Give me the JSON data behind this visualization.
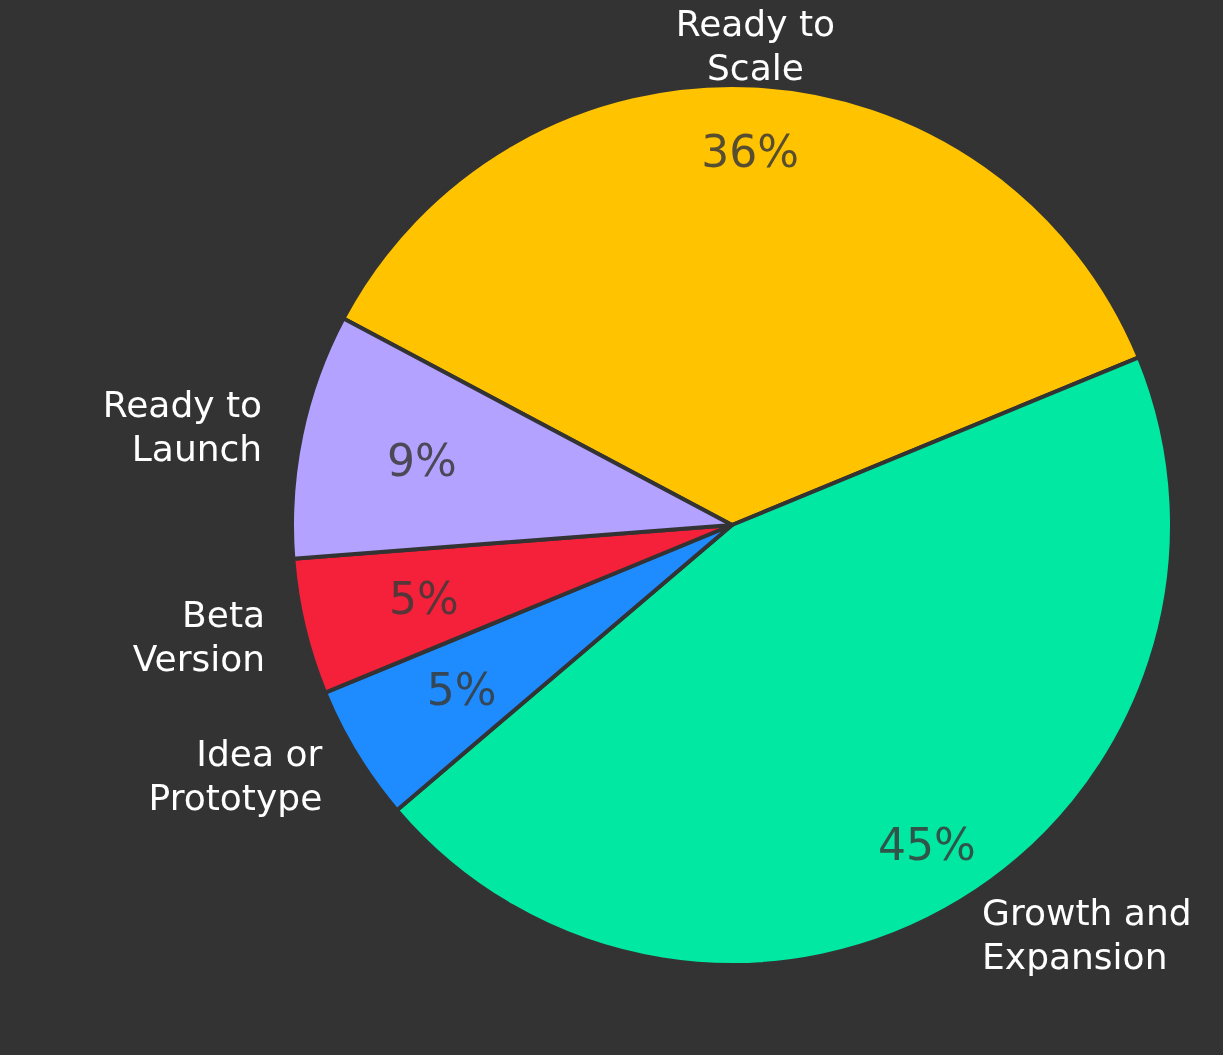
{
  "chart_data": {
    "type": "pie",
    "categories": [
      "Ready to Scale",
      "Growth and Expansion",
      "Idea or Prototype",
      "Beta Version",
      "Ready to Launch"
    ],
    "values": [
      36,
      45,
      5,
      5,
      9
    ],
    "colors": [
      "#ffc300",
      "#00e8a2",
      "#1e8cff",
      "#f5213a",
      "#b3a2ff"
    ],
    "value_labels": [
      "36%",
      "45%",
      "5%",
      "5%",
      "9%"
    ]
  }
}
